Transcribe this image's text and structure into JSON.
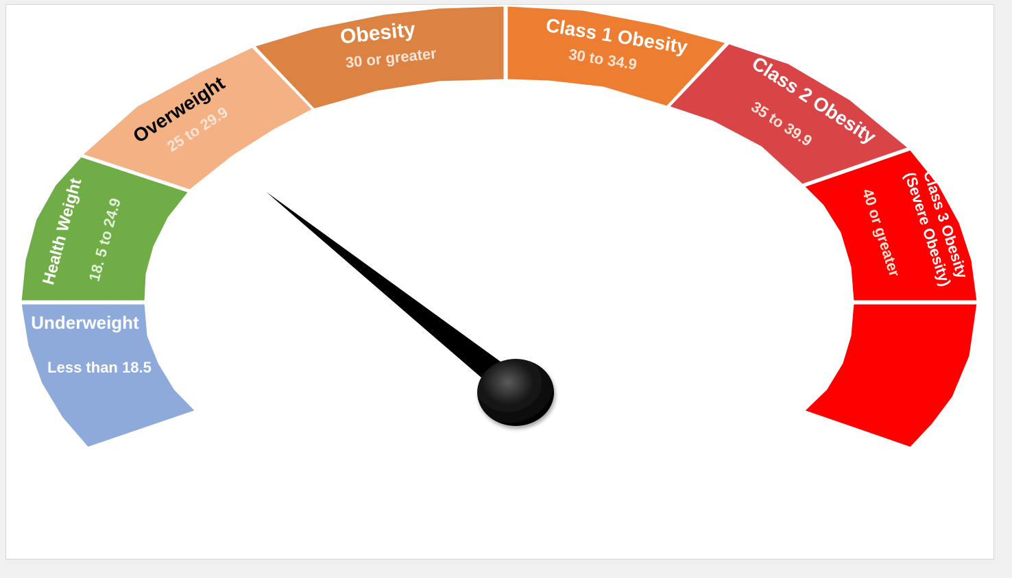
{
  "gauge": {
    "segments": [
      {
        "id": "underweight",
        "title": "Underweight",
        "range": "Less than 18.5",
        "color": "#8eaadb",
        "title_color": "#ffffff",
        "range_color": "#ffffff"
      },
      {
        "id": "healthy",
        "title": "Health Weight",
        "range": "18. 5 to 24.9",
        "color": "#70ad47",
        "title_color": "#ffffff",
        "range_color": "#e2efd9"
      },
      {
        "id": "overweight",
        "title": "Overweight",
        "range": "25 to 29.9",
        "color": "#f4b183",
        "title_color": "#000000",
        "range_color": "#fbe5d6"
      },
      {
        "id": "obesity",
        "title": "Obesity",
        "range": "30 or greater",
        "color": "#dc8343",
        "title_color": "#ffffff",
        "range_color": "#fbe5d6"
      },
      {
        "id": "class1",
        "title": "Class 1 Obesity",
        "range": "30 to 34.9",
        "color": "#ed7d31",
        "title_color": "#ffffff",
        "range_color": "#fbe5d6"
      },
      {
        "id": "class2",
        "title": "Class 2 Obesity",
        "range": "35 to 39.9",
        "color": "#d94447",
        "title_color": "#ffffff",
        "range_color": "#fbe5d6"
      },
      {
        "id": "class3",
        "title": "Class 3 Obesity",
        "title_line2": "(Severe Obesity)",
        "range": "40 or greater",
        "color": "#ff0000",
        "title_color": "#ffffff",
        "range_color": "#fbe5d6"
      },
      {
        "id": "class3-lower",
        "color": "#ff0000"
      }
    ],
    "needle_color": "#000000",
    "hub_color": "#111111",
    "separator_color": "#ffffff"
  }
}
